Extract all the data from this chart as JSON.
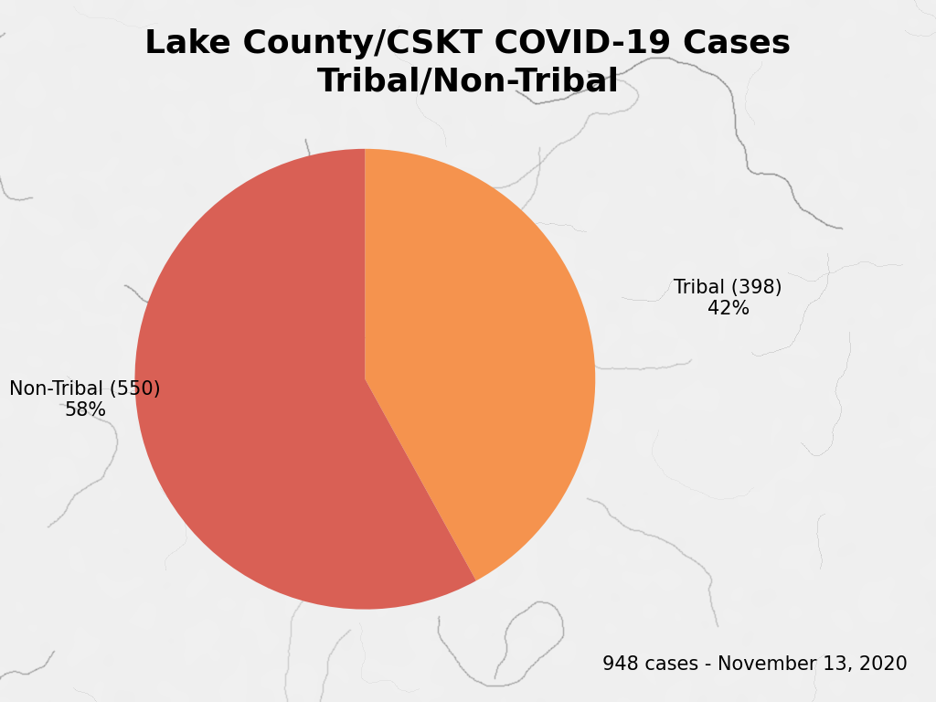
{
  "title": "Lake County/CSKT COVID-19 Cases\nTribal/Non-Tribal",
  "slices": [
    398,
    550
  ],
  "tribal_color": "#F5934E",
  "nontribal_color": "#D96055",
  "tribal_label": "Tribal (398)\n42%",
  "nontribal_label": "Non-Tribal (550)\n58%",
  "title_fontsize": 26,
  "label_fontsize": 15,
  "footnote": "948 cases - November 13, 2020",
  "footnote_fontsize": 15,
  "startangle": 90
}
